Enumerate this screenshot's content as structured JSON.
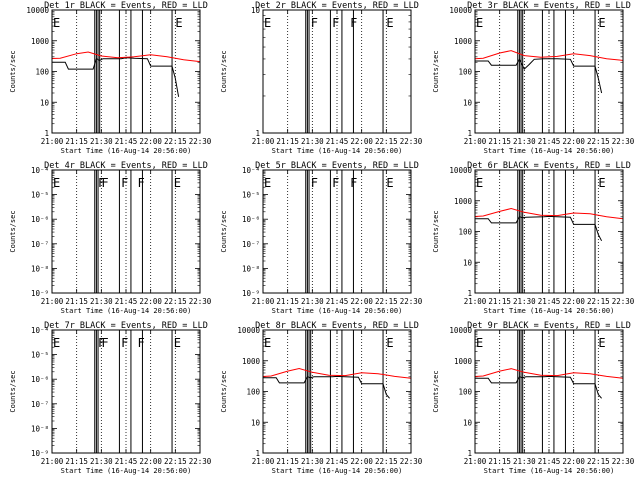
{
  "chart_data": [
    {
      "type": "line",
      "title": "Det 1r BLACK = Events, RED = LLD",
      "xlabel": "Start Time (16-Aug-14 20:56:00)",
      "ylabel": "Counts/sec",
      "xlim": [
        "21:00",
        "22:30"
      ],
      "ylim": [
        1,
        10000
      ],
      "yscale": "log",
      "yticks": [
        "1",
        "10",
        "100",
        "1000",
        "10000"
      ],
      "xticks": [
        "21:00",
        "21:15",
        "21:30",
        "21:45",
        "22:00",
        "22:15",
        "22:30"
      ],
      "grid": "vertical-dotted",
      "flags": [
        {
          "x": "20:58",
          "label": "E"
        },
        {
          "x": "22:15",
          "label": "E"
        }
      ],
      "vlines": [
        "21:26",
        "21:27",
        "21:28",
        "21:29",
        "21:41",
        "21:48",
        "21:55",
        "22:13"
      ],
      "series": [
        {
          "color": "#000000",
          "x": [
            "20:56",
            "21:08",
            "21:10",
            "21:25",
            "21:27",
            "21:29",
            "21:31",
            "21:42",
            "21:45",
            "21:50",
            "21:58",
            "22:00",
            "22:13",
            "22:15",
            "22:17"
          ],
          "values": [
            200,
            200,
            120,
            120,
            260,
            230,
            260,
            260,
            280,
            270,
            260,
            150,
            150,
            60,
            15
          ]
        },
        {
          "color": "#ff0000",
          "x": [
            "20:56",
            "21:05",
            "21:15",
            "21:22",
            "21:30",
            "21:40",
            "21:50",
            "22:00",
            "22:10",
            "22:20",
            "22:30"
          ],
          "values": [
            260,
            270,
            380,
            430,
            320,
            280,
            300,
            350,
            300,
            240,
            210
          ]
        }
      ]
    },
    {
      "type": "line",
      "title": "Det 2r BLACK = Events, RED = LLD",
      "xlabel": "Start Time (16-Aug-14 20:56:00)",
      "ylabel": "Counts/sec",
      "xlim": [
        "21:00",
        "22:30"
      ],
      "ylim": [
        1,
        10
      ],
      "yscale": "log",
      "yticks": [
        "1",
        "10"
      ],
      "xticks": [
        "21:00",
        "21:15",
        "21:30",
        "21:45",
        "22:00",
        "22:15",
        "22:30"
      ],
      "grid": "vertical-dotted",
      "flags": [
        {
          "x": "20:58",
          "label": "E"
        },
        {
          "x": "21:29",
          "label": "F"
        },
        {
          "x": "21:42",
          "label": "F"
        },
        {
          "x": "21:53",
          "label": "F"
        },
        {
          "x": "22:15",
          "label": "E"
        }
      ],
      "vlines": [
        "21:26",
        "21:27",
        "21:28",
        "21:41",
        "21:48",
        "21:55",
        "22:13"
      ],
      "series": []
    },
    {
      "type": "line",
      "title": "Det 3r BLACK = Events, RED = LLD",
      "xlabel": "Start Time (16-Aug-14 20:56:00)",
      "ylabel": "Counts/sec",
      "xlim": [
        "21:00",
        "22:30"
      ],
      "ylim": [
        1,
        10000
      ],
      "yscale": "log",
      "yticks": [
        "1",
        "10",
        "100",
        "1000",
        "10000"
      ],
      "xticks": [
        "21:00",
        "21:15",
        "21:30",
        "21:45",
        "22:00",
        "22:15",
        "22:30"
      ],
      "grid": "vertical-dotted",
      "flags": [
        {
          "x": "20:58",
          "label": "E"
        },
        {
          "x": "22:15",
          "label": "E"
        }
      ],
      "vlines": [
        "21:26",
        "21:27",
        "21:28",
        "21:29",
        "21:41",
        "21:48",
        "21:55",
        "22:13"
      ],
      "series": [
        {
          "color": "#000000",
          "x": [
            "20:56",
            "21:08",
            "21:10",
            "21:25",
            "21:27",
            "21:30",
            "21:33",
            "21:36",
            "21:42",
            "21:50",
            "21:58",
            "22:00",
            "22:13",
            "22:15",
            "22:17"
          ],
          "values": [
            220,
            220,
            160,
            160,
            250,
            120,
            170,
            250,
            260,
            260,
            250,
            150,
            150,
            60,
            20
          ]
        },
        {
          "color": "#ff0000",
          "x": [
            "20:56",
            "21:05",
            "21:15",
            "21:22",
            "21:30",
            "21:40",
            "21:50",
            "22:00",
            "22:10",
            "22:20",
            "22:30"
          ],
          "values": [
            250,
            270,
            400,
            480,
            330,
            290,
            310,
            380,
            330,
            260,
            230
          ]
        }
      ]
    },
    {
      "type": "line",
      "title": "Det 4r BLACK = Events, RED = LLD",
      "xlabel": "Start Time (16-Aug-14 20:56:00)",
      "ylabel": "Counts/sec",
      "xlim": [
        "21:00",
        "22:30"
      ],
      "ylim": [
        1e-09,
        0.0001
      ],
      "yscale": "log",
      "yticks": [
        "10⁻⁹",
        "10⁻⁸",
        "10⁻⁷",
        "10⁻⁶",
        "10⁻⁵",
        "10⁻⁴"
      ],
      "xticks": [
        "21:00",
        "21:15",
        "21:30",
        "21:45",
        "22:00",
        "22:15",
        "22:30"
      ],
      "grid": "vertical-dotted",
      "flags": [
        {
          "x": "20:58",
          "label": "E"
        },
        {
          "x": "21:28",
          "label": "F"
        },
        {
          "x": "21:30",
          "label": "F"
        },
        {
          "x": "21:42",
          "label": "F"
        },
        {
          "x": "21:52",
          "label": "F"
        },
        {
          "x": "22:14",
          "label": "E"
        }
      ],
      "vlines": [
        "21:26",
        "21:27",
        "21:28",
        "21:41",
        "21:48",
        "21:55",
        "22:13"
      ],
      "series": []
    },
    {
      "type": "line",
      "title": "Det 5r BLACK = Events, RED = LLD",
      "xlabel": "Start Time (16-Aug-14 20:56:00)",
      "ylabel": "Counts/sec",
      "xlim": [
        "21:00",
        "22:30"
      ],
      "ylim": [
        1e-09,
        0.0001
      ],
      "yscale": "log",
      "yticks": [
        "10⁻⁹",
        "10⁻⁸",
        "10⁻⁷",
        "10⁻⁶",
        "10⁻⁵",
        "10⁻⁴"
      ],
      "xticks": [
        "21:00",
        "21:15",
        "21:30",
        "21:45",
        "22:00",
        "22:15",
        "22:30"
      ],
      "grid": "vertical-dotted",
      "flags": [
        {
          "x": "20:58",
          "label": "E"
        },
        {
          "x": "21:29",
          "label": "F"
        },
        {
          "x": "21:42",
          "label": "F"
        },
        {
          "x": "21:53",
          "label": "F"
        },
        {
          "x": "22:15",
          "label": "E"
        }
      ],
      "vlines": [
        "21:26",
        "21:27",
        "21:28",
        "21:41",
        "21:48",
        "21:55",
        "22:13"
      ],
      "series": []
    },
    {
      "type": "line",
      "title": "Det 6r BLACK = Events, RED = LLD",
      "xlabel": "Start Time (16-Aug-14 20:56:00)",
      "ylabel": "Counts/sec",
      "xlim": [
        "21:00",
        "22:30"
      ],
      "ylim": [
        1,
        10000
      ],
      "yscale": "log",
      "yticks": [
        "1",
        "10",
        "100",
        "1000",
        "10000"
      ],
      "xticks": [
        "21:00",
        "21:15",
        "21:30",
        "21:45",
        "22:00",
        "22:15",
        "22:30"
      ],
      "grid": "vertical-dotted",
      "flags": [
        {
          "x": "20:58",
          "label": "E"
        },
        {
          "x": "22:15",
          "label": "E"
        }
      ],
      "vlines": [
        "21:26",
        "21:27",
        "21:28",
        "21:29",
        "21:41",
        "21:48",
        "21:55",
        "22:13"
      ],
      "series": [
        {
          "color": "#000000",
          "x": [
            "20:56",
            "21:08",
            "21:10",
            "21:25",
            "21:27",
            "21:29",
            "21:31",
            "21:42",
            "21:45",
            "21:50",
            "21:58",
            "22:00",
            "22:13",
            "22:15",
            "22:17"
          ],
          "values": [
            260,
            260,
            190,
            190,
            300,
            280,
            290,
            300,
            310,
            300,
            290,
            170,
            170,
            80,
            50
          ]
        },
        {
          "color": "#ff0000",
          "x": [
            "20:56",
            "21:05",
            "21:15",
            "21:22",
            "21:30",
            "21:40",
            "21:50",
            "22:00",
            "22:10",
            "22:20",
            "22:30"
          ],
          "values": [
            300,
            320,
            450,
            560,
            420,
            340,
            330,
            400,
            380,
            300,
            260
          ]
        }
      ]
    },
    {
      "type": "line",
      "title": "Det 7r BLACK = Events, RED = LLD",
      "xlabel": "Start Time (16-Aug-14 20:56:00)",
      "ylabel": "Counts/sec",
      "xlim": [
        "21:00",
        "22:30"
      ],
      "ylim": [
        1e-09,
        0.0001
      ],
      "yscale": "log",
      "yticks": [
        "10⁻⁹",
        "10⁻⁸",
        "10⁻⁷",
        "10⁻⁶",
        "10⁻⁵",
        "10⁻⁴"
      ],
      "xticks": [
        "21:00",
        "21:15",
        "21:30",
        "21:45",
        "22:00",
        "22:15",
        "22:30"
      ],
      "grid": "vertical-dotted",
      "flags": [
        {
          "x": "20:58",
          "label": "E"
        },
        {
          "x": "21:28",
          "label": "F"
        },
        {
          "x": "21:30",
          "label": "F"
        },
        {
          "x": "21:42",
          "label": "F"
        },
        {
          "x": "21:52",
          "label": "F"
        },
        {
          "x": "22:14",
          "label": "E"
        }
      ],
      "vlines": [
        "21:26",
        "21:27",
        "21:28",
        "21:41",
        "21:48",
        "21:55",
        "22:13"
      ],
      "series": []
    },
    {
      "type": "line",
      "title": "Det 8r BLACK = Events, RED = LLD",
      "xlabel": "Start Time (16-Aug-14 20:56:00)",
      "ylabel": "Counts/sec",
      "xlim": [
        "21:00",
        "22:30"
      ],
      "ylim": [
        1,
        10000
      ],
      "yscale": "log",
      "yticks": [
        "1",
        "10",
        "100",
        "1000",
        "10000"
      ],
      "xticks": [
        "21:00",
        "21:15",
        "21:30",
        "21:45",
        "22:00",
        "22:15",
        "22:30"
      ],
      "grid": "vertical-dotted",
      "flags": [
        {
          "x": "20:58",
          "label": "E"
        },
        {
          "x": "22:15",
          "label": "E"
        }
      ],
      "vlines": [
        "21:26",
        "21:27",
        "21:28",
        "21:29",
        "21:41",
        "21:48",
        "21:55",
        "22:13"
      ],
      "series": [
        {
          "color": "#000000",
          "x": [
            "20:56",
            "21:08",
            "21:10",
            "21:25",
            "21:27",
            "21:29",
            "21:31",
            "21:42",
            "21:45",
            "21:50",
            "21:58",
            "22:00",
            "22:13",
            "22:15",
            "22:17"
          ],
          "values": [
            280,
            280,
            190,
            190,
            300,
            280,
            300,
            300,
            310,
            300,
            290,
            180,
            180,
            80,
            60
          ]
        },
        {
          "color": "#ff0000",
          "x": [
            "20:56",
            "21:05",
            "21:15",
            "21:22",
            "21:30",
            "21:40",
            "21:50",
            "22:00",
            "22:10",
            "22:20",
            "22:30"
          ],
          "values": [
            300,
            320,
            460,
            560,
            420,
            340,
            330,
            410,
            380,
            310,
            270
          ]
        }
      ]
    },
    {
      "type": "line",
      "title": "Det 9r BLACK = Events, RED = LLD",
      "xlabel": "Start Time (16-Aug-14 20:56:00)",
      "ylabel": "Counts/sec",
      "xlim": [
        "21:00",
        "22:30"
      ],
      "ylim": [
        1,
        10000
      ],
      "yscale": "log",
      "yticks": [
        "1",
        "10",
        "100",
        "1000",
        "10000"
      ],
      "xticks": [
        "21:00",
        "21:15",
        "21:30",
        "21:45",
        "22:00",
        "22:15",
        "22:30"
      ],
      "grid": "vertical-dotted",
      "flags": [
        {
          "x": "20:58",
          "label": "E"
        },
        {
          "x": "22:15",
          "label": "E"
        }
      ],
      "vlines": [
        "21:26",
        "21:27",
        "21:28",
        "21:29",
        "21:41",
        "21:48",
        "21:55",
        "22:13"
      ],
      "series": [
        {
          "color": "#000000",
          "x": [
            "20:56",
            "21:08",
            "21:10",
            "21:25",
            "21:27",
            "21:29",
            "21:31",
            "21:42",
            "21:45",
            "21:50",
            "21:58",
            "22:00",
            "22:13",
            "22:15",
            "22:17"
          ],
          "values": [
            270,
            270,
            190,
            190,
            300,
            280,
            300,
            300,
            310,
            300,
            290,
            180,
            180,
            80,
            60
          ]
        },
        {
          "color": "#ff0000",
          "x": [
            "20:56",
            "21:05",
            "21:15",
            "21:22",
            "21:30",
            "21:40",
            "21:50",
            "22:00",
            "22:10",
            "22:20",
            "22:30"
          ],
          "values": [
            300,
            320,
            460,
            550,
            420,
            340,
            330,
            410,
            380,
            310,
            270
          ]
        }
      ]
    }
  ]
}
